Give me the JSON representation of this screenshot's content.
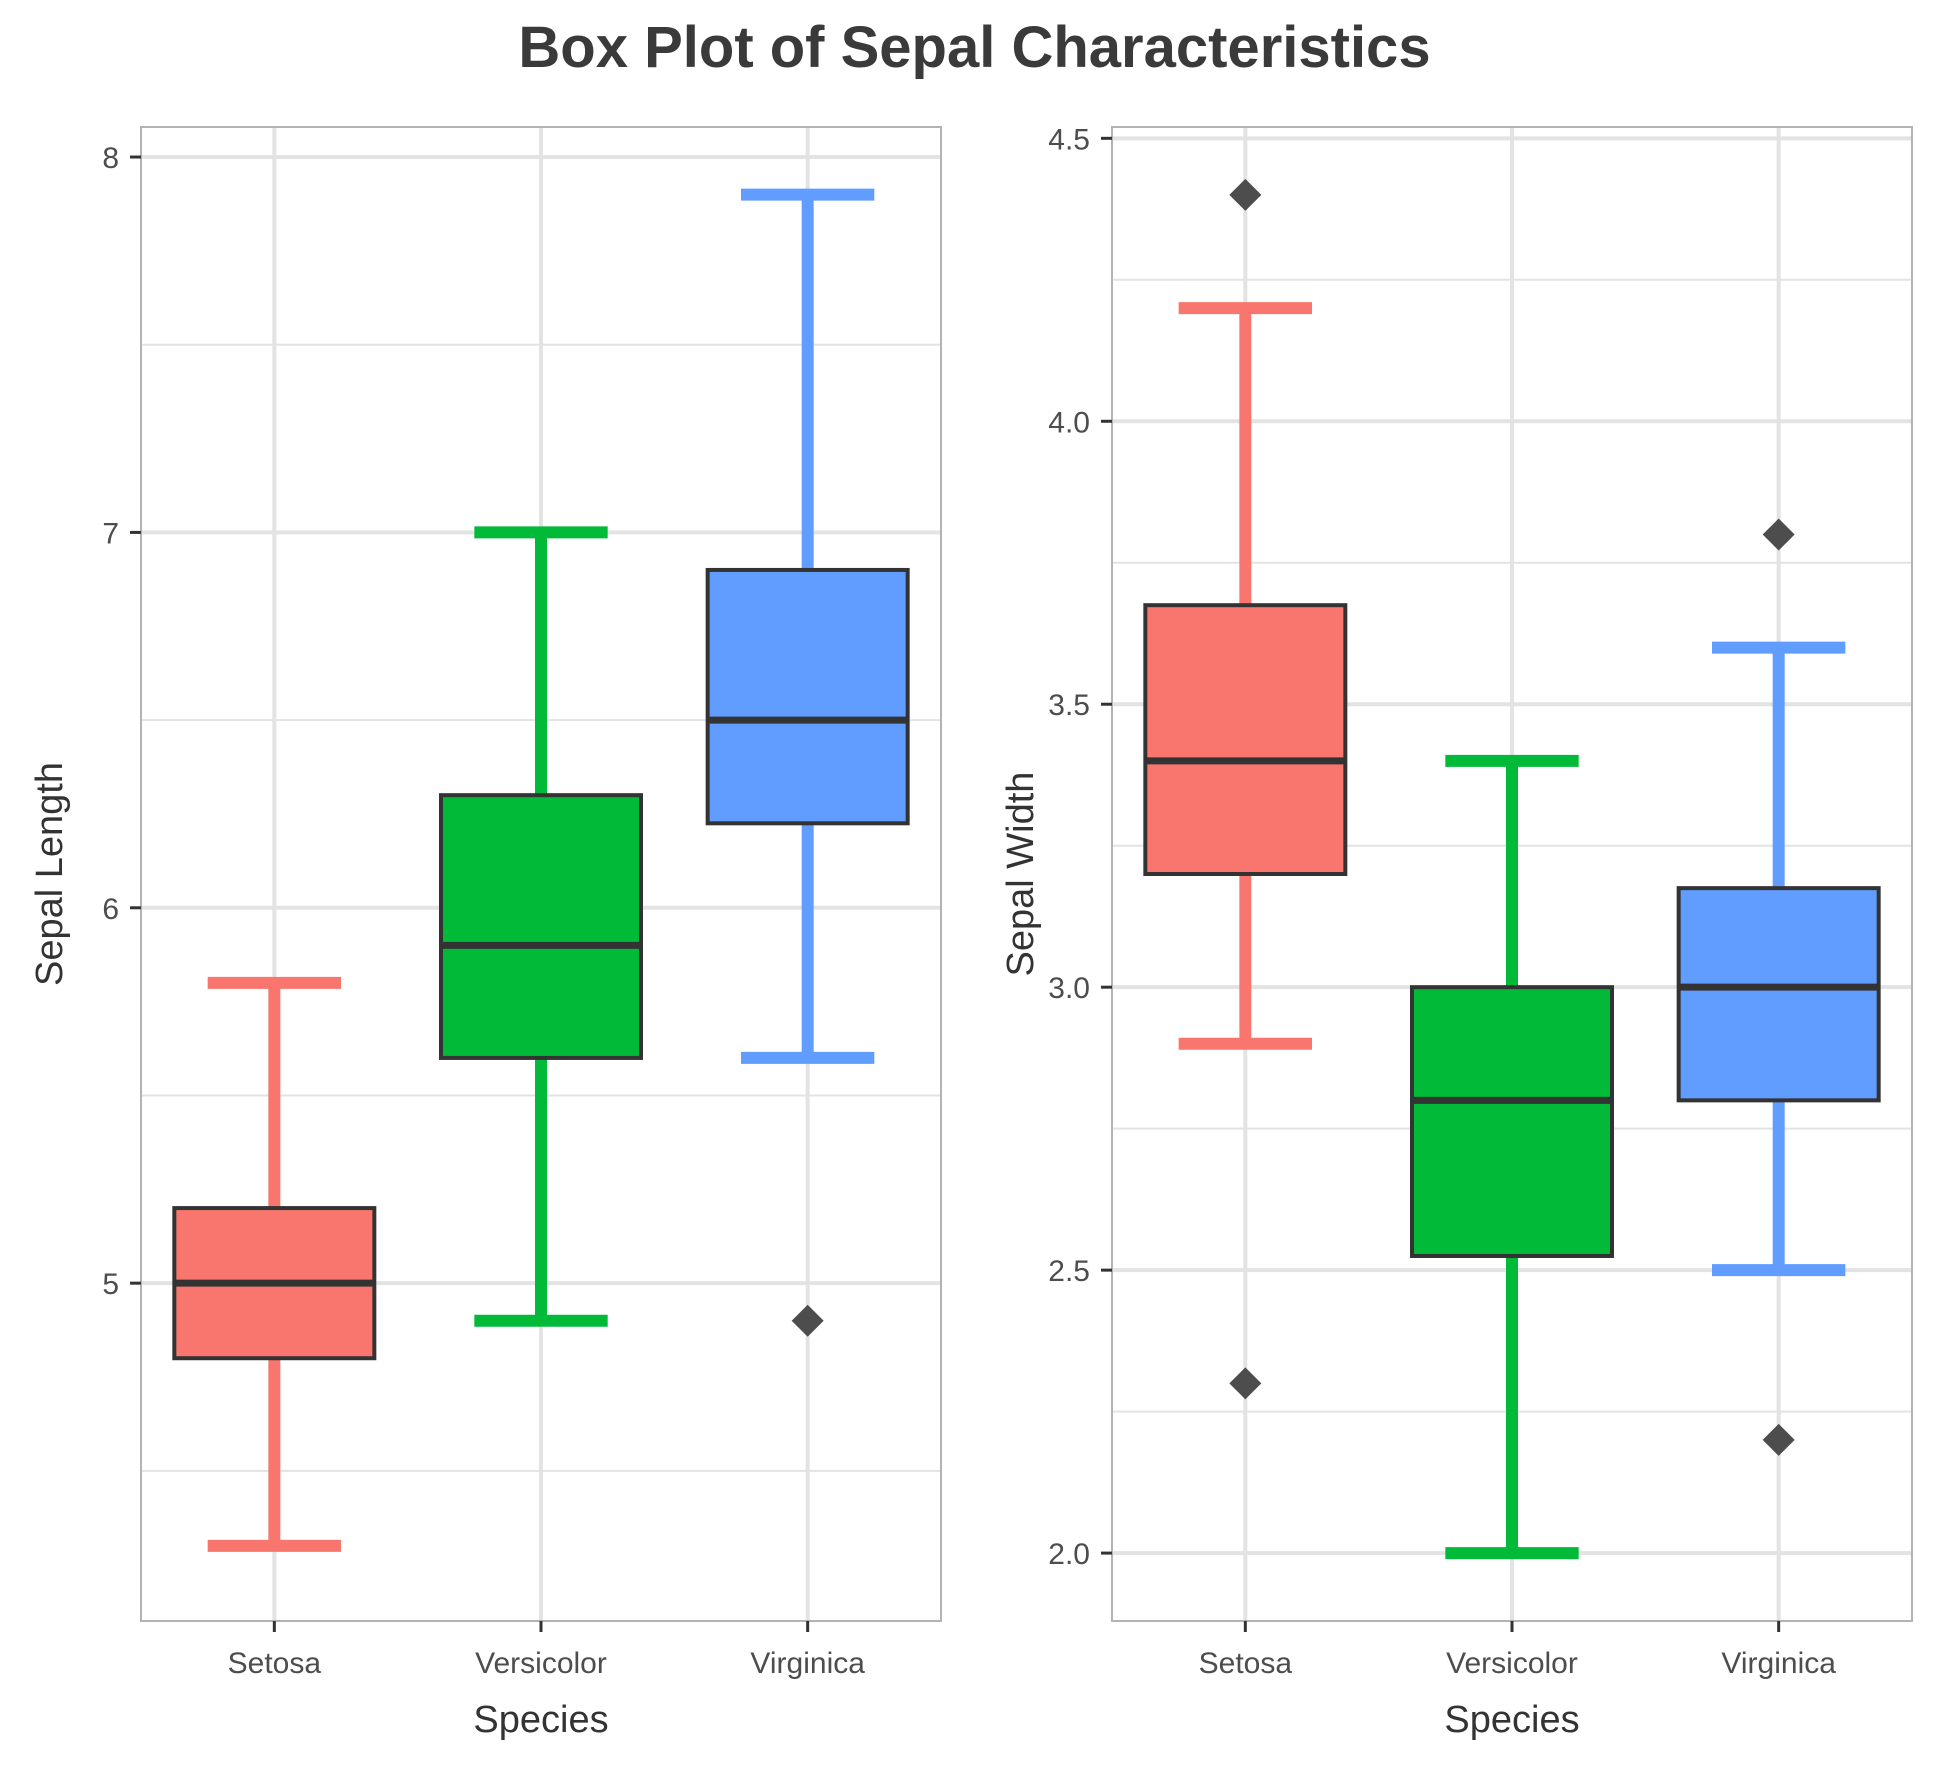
{
  "title": "Box Plot of Sepal Characteristics",
  "colors": {
    "Setosa": "#F8766D",
    "Versicolor": "#00BA38",
    "Virginica": "#619CFF",
    "outline": "#333333",
    "grid": "#e3e3e3",
    "outlier": "#4d4d4d"
  },
  "chart_data": [
    {
      "type": "box",
      "xlabel": "Species",
      "ylabel": "Sepal Length",
      "categories": [
        "Setosa",
        "Versicolor",
        "Virginica"
      ],
      "ylim": [
        4.1,
        8.08
      ],
      "yticks": [
        5,
        6,
        7,
        8
      ],
      "ytick_labels": [
        "5",
        "6",
        "7",
        "8"
      ],
      "minor_yticks": [
        4.5,
        5.5,
        6.5,
        7.5
      ],
      "grid": true,
      "boxes": [
        {
          "name": "Setosa",
          "whisker_low": 4.3,
          "q1": 4.8,
          "median": 5.0,
          "q3": 5.2,
          "whisker_high": 5.8,
          "outliers": []
        },
        {
          "name": "Versicolor",
          "whisker_low": 4.9,
          "q1": 5.6,
          "median": 5.9,
          "q3": 6.3,
          "whisker_high": 7.0,
          "outliers": []
        },
        {
          "name": "Virginica",
          "whisker_low": 5.6,
          "q1": 6.225,
          "median": 6.5,
          "q3": 6.9,
          "whisker_high": 7.9,
          "outliers": [
            4.9
          ]
        }
      ]
    },
    {
      "type": "box",
      "xlabel": "Species",
      "ylabel": "Sepal Width",
      "categories": [
        "Setosa",
        "Versicolor",
        "Virginica"
      ],
      "ylim": [
        1.88,
        4.52
      ],
      "yticks": [
        2.0,
        2.5,
        3.0,
        3.5,
        4.0,
        4.5
      ],
      "ytick_labels": [
        "2.0",
        "2.5",
        "3.0",
        "3.5",
        "4.0",
        "4.5"
      ],
      "minor_yticks": [
        2.25,
        2.75,
        3.25,
        3.75,
        4.25
      ],
      "grid": true,
      "boxes": [
        {
          "name": "Setosa",
          "whisker_low": 2.9,
          "q1": 3.2,
          "median": 3.4,
          "q3": 3.675,
          "whisker_high": 4.2,
          "outliers": [
            4.4,
            2.3
          ]
        },
        {
          "name": "Versicolor",
          "whisker_low": 2.0,
          "q1": 2.525,
          "median": 2.8,
          "q3": 3.0,
          "whisker_high": 3.4,
          "outliers": []
        },
        {
          "name": "Virginica",
          "whisker_low": 2.5,
          "q1": 2.8,
          "median": 3.0,
          "q3": 3.175,
          "whisker_high": 3.6,
          "outliers": [
            3.8,
            2.2
          ]
        }
      ]
    }
  ]
}
